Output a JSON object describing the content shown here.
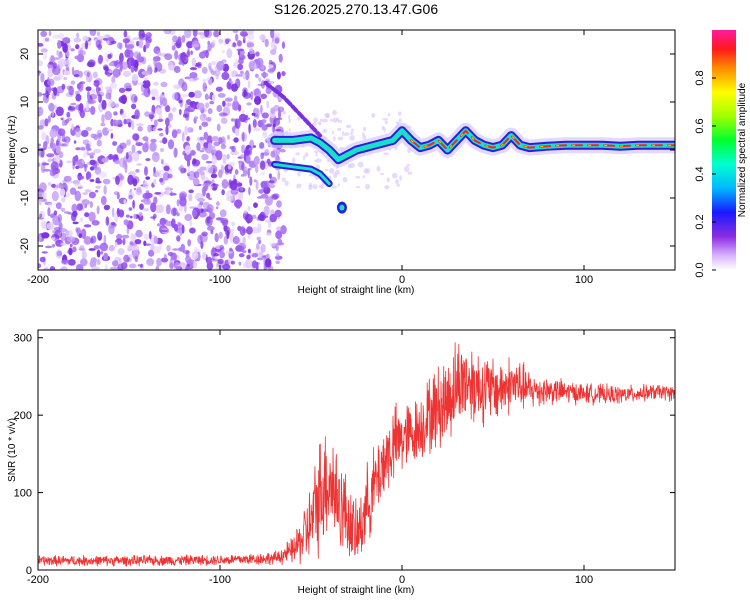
{
  "title": "S126.2025.270.13.47.G06",
  "colors": {
    "snr_line": "#ee3333",
    "noise_points": "#7a2fe0",
    "track_outer": "#2a1fd8",
    "track_mid": "#19e0c8",
    "track_core": "#ff2020"
  },
  "chart_data": [
    {
      "type": "heatmap",
      "name": "spectrogram",
      "xlabel": "Height of straight line (km)",
      "ylabel": "Frequency (Hz)",
      "xlim": [
        -200,
        150
      ],
      "ylim": [
        -25,
        25
      ],
      "xticks": [
        -200,
        -100,
        0,
        100
      ],
      "xtick_labels": [
        "-200",
        "-100",
        "0",
        "100"
      ],
      "yticks": [
        -20,
        -10,
        0,
        10,
        20
      ],
      "ytick_labels": [
        "-20",
        "-10",
        "0",
        "10",
        "20"
      ],
      "grid": false,
      "colorbar": {
        "label": "Normalized spectral amplitude",
        "range": [
          0,
          1
        ],
        "ticks": [
          0.0,
          0.2,
          0.4,
          0.6,
          0.8
        ],
        "tick_labels": [
          "0.0",
          "0.2",
          "0.4",
          "0.6",
          "0.8"
        ]
      },
      "noise_region_x": [
        -200,
        -65
      ],
      "track": {
        "x": [
          -70,
          -60,
          -50,
          -45,
          -40,
          -35,
          -30,
          -25,
          -20,
          -15,
          -10,
          -5,
          0,
          5,
          10,
          15,
          20,
          25,
          30,
          35,
          40,
          45,
          50,
          55,
          60,
          65,
          70,
          80,
          90,
          100,
          110,
          120,
          130,
          140,
          150
        ],
        "freq": [
          2,
          2,
          2.5,
          1.5,
          0,
          -2,
          -1,
          0,
          0.5,
          1,
          1.5,
          2,
          4,
          2,
          0.5,
          1,
          2,
          0,
          2,
          4,
          2,
          1,
          0.5,
          1,
          3,
          1,
          0.5,
          0.8,
          1,
          1,
          1,
          0.8,
          1,
          1,
          1
        ],
        "secondary_branch": {
          "x": [
            -70,
            -60,
            -50,
            -45,
            -40
          ],
          "freq": [
            -3,
            -3.5,
            -4,
            -5,
            -7
          ]
        },
        "upper_branch": {
          "x": [
            -75,
            -65,
            -55,
            -50,
            -45
          ],
          "freq": [
            14,
            11,
            7,
            5,
            3
          ]
        },
        "blob": {
          "x": -33,
          "freq": -12
        }
      }
    },
    {
      "type": "line",
      "name": "snr",
      "xlabel": "Height of straight line (km)",
      "ylabel": "SNR (10 * v/v)",
      "xlim": [
        -200,
        150
      ],
      "ylim": [
        0,
        310
      ],
      "xticks": [
        -200,
        -100,
        0,
        100
      ],
      "xtick_labels": [
        "-200",
        "-100",
        "0",
        "100"
      ],
      "yticks": [
        0,
        100,
        200,
        300
      ],
      "ytick_labels": [
        "0",
        "100",
        "200",
        "300"
      ],
      "grid": false,
      "series": [
        {
          "name": "SNR",
          "x": [
            -200,
            -150,
            -100,
            -70,
            -60,
            -55,
            -50,
            -45,
            -40,
            -35,
            -30,
            -25,
            -20,
            -15,
            -10,
            -5,
            0,
            5,
            10,
            15,
            20,
            25,
            30,
            35,
            40,
            45,
            50,
            55,
            60,
            65,
            70,
            80,
            90,
            100,
            110,
            120,
            130,
            140,
            150
          ],
          "values": [
            12,
            12,
            13,
            15,
            25,
            40,
            60,
            100,
            120,
            90,
            70,
            40,
            80,
            110,
            140,
            160,
            170,
            175,
            185,
            200,
            210,
            220,
            240,
            245,
            240,
            235,
            232,
            235,
            240,
            238,
            232,
            232,
            230,
            228,
            227,
            226,
            228,
            230,
            228
          ],
          "spread": [
            8,
            8,
            8,
            10,
            20,
            40,
            60,
            90,
            90,
            80,
            60,
            50,
            60,
            60,
            60,
            60,
            55,
            50,
            50,
            60,
            65,
            70,
            70,
            65,
            60,
            55,
            50,
            45,
            45,
            40,
            30,
            22,
            18,
            16,
            15,
            14,
            13,
            12,
            12
          ]
        }
      ]
    }
  ]
}
